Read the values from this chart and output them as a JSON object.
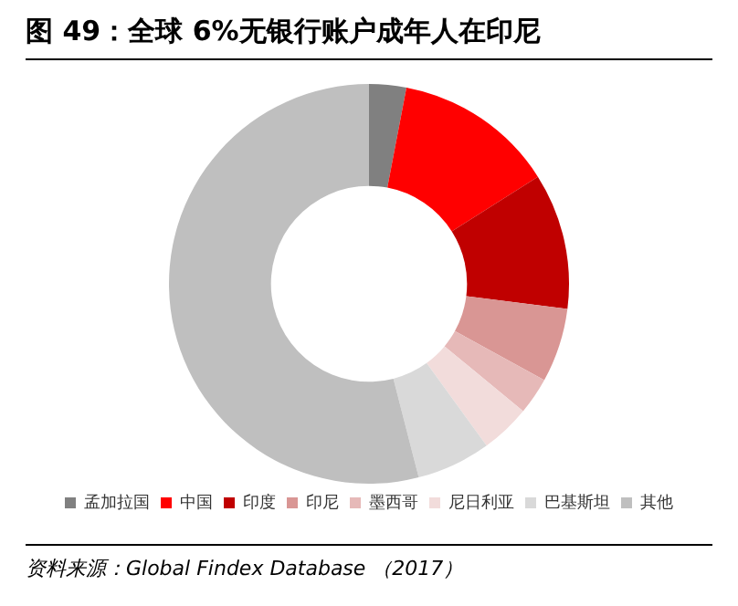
{
  "chart_data": {
    "type": "donut",
    "title": "图 49：全球 6%无银行账户成年人在印尼",
    "categories": [
      "孟加拉国",
      "中国",
      "印度",
      "印尼",
      "墨西哥",
      "尼日利亚",
      "巴基斯坦",
      "其他"
    ],
    "values": [
      3,
      13,
      11,
      6,
      3,
      4,
      6,
      54
    ],
    "colors": [
      "#808080",
      "#ff0000",
      "#c00000",
      "#d99694",
      "#e6b9b8",
      "#f2dcdb",
      "#d9d9d9",
      "#bfbfbf"
    ],
    "legend": "bottom",
    "annotations": [
      "资料来源：Global Findex Database （2017）"
    ]
  }
}
